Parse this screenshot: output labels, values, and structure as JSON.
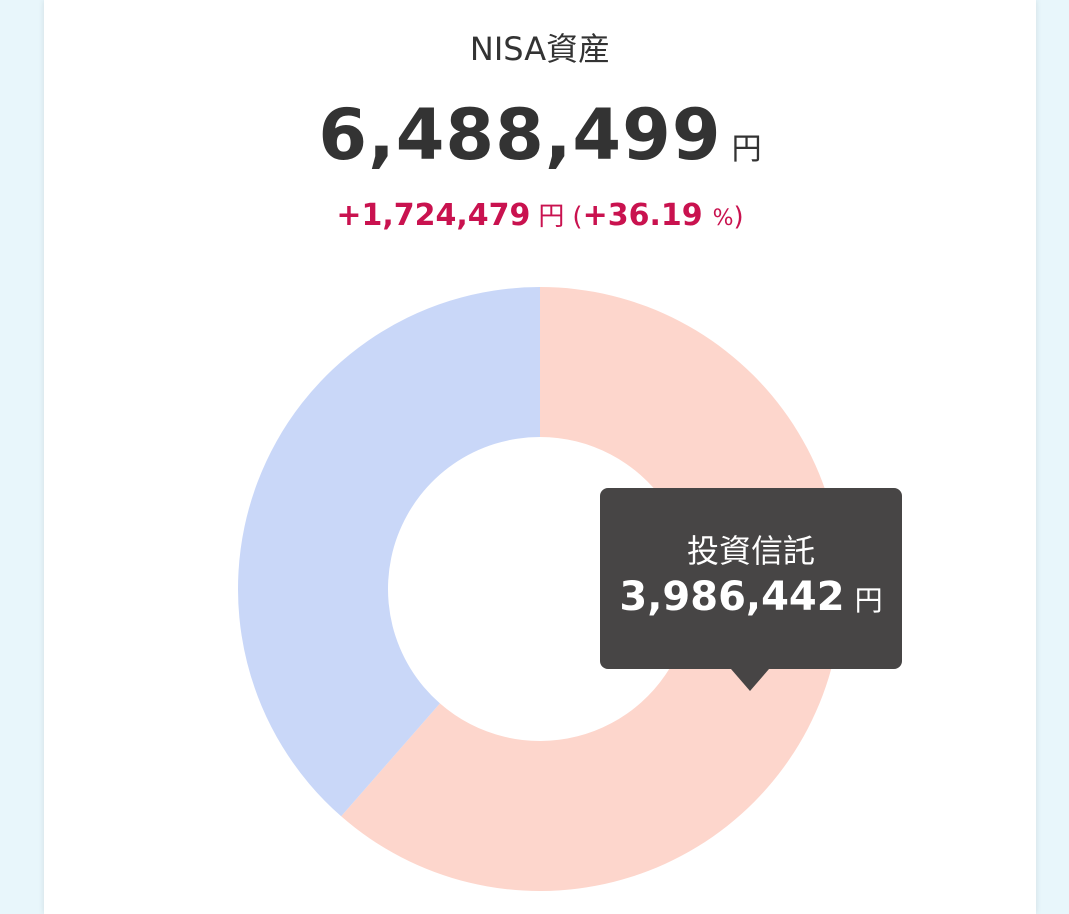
{
  "card": {
    "title": "NISA資産",
    "total": {
      "value": "6,488,499",
      "unit": "円"
    },
    "change": {
      "amount": "+1,724,479",
      "unit": "円",
      "paren_open": "(",
      "percent": "+36.19",
      "percent_unit": "%",
      "paren_close": ")"
    }
  },
  "chart_data": {
    "type": "pie",
    "style": "donut",
    "series": [
      {
        "name": "投資信託",
        "value": 3986442,
        "color": "#fdd6cc"
      },
      {
        "value": 2502057,
        "color": "#c9d7f8"
      }
    ],
    "total": 6488499
  },
  "tooltip": {
    "label": "投資信託",
    "value": "3,986,442",
    "unit": "円"
  }
}
